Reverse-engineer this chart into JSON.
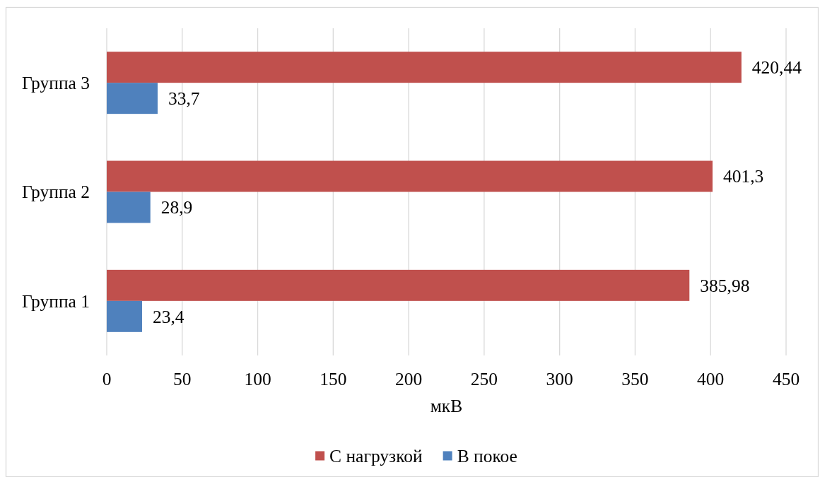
{
  "chart_data": {
    "type": "bar",
    "orientation": "horizontal",
    "categories": [
      "Группа 3",
      "Группа 2",
      "Группа 1"
    ],
    "series": [
      {
        "name": "С нагрузкой",
        "color": "#c0504d",
        "values": [
          420.44,
          401.3,
          385.98
        ],
        "value_labels": [
          "420,44",
          "401,3",
          "385,98"
        ]
      },
      {
        "name": "В покое",
        "color": "#4f81bd",
        "values": [
          33.7,
          28.9,
          23.4
        ],
        "value_labels": [
          "33,7",
          "28,9",
          "23,4"
        ]
      }
    ],
    "xlabel": "мкВ",
    "xlim": [
      0,
      450
    ],
    "xticks": [
      0,
      50,
      100,
      150,
      200,
      250,
      300,
      350,
      400,
      450
    ],
    "grid": "x",
    "legend": "bottom"
  }
}
